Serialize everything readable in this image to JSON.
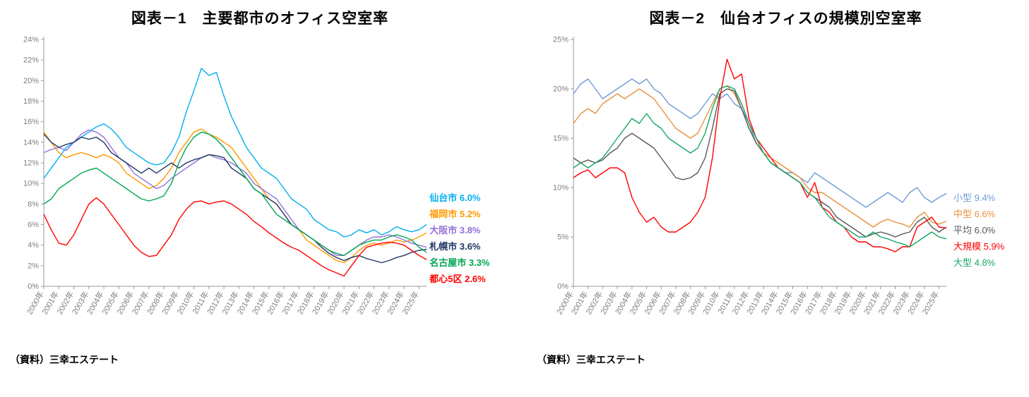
{
  "chart_data": [
    {
      "type": "line",
      "title": "図表－1　主要都市のオフィス空室率",
      "source": "（資料）三幸エステート",
      "x_start": 2000,
      "x_step": 0.5,
      "x_tick_labels": [
        "2000年",
        "2001年",
        "2002年",
        "2003年",
        "2004年",
        "2005年",
        "2006年",
        "2007年",
        "2008年",
        "2009年",
        "2010年",
        "2011年",
        "2012年",
        "2013年",
        "2014年",
        "2015年",
        "2016年",
        "2017年",
        "2018年",
        "2019年",
        "2020年",
        "2021年",
        "2022年",
        "2023年",
        "2024年",
        "2025年"
      ],
      "ylim": [
        0,
        24
      ],
      "y_tick_step": 2,
      "y_tick_labels": [
        "0%",
        "2%",
        "4%",
        "6%",
        "8%",
        "10%",
        "12%",
        "14%",
        "16%",
        "18%",
        "20%",
        "22%",
        "24%"
      ],
      "grid": false,
      "legend_position": "right",
      "series": [
        {
          "name": "仙台市",
          "legend_label": "仙台市 6.0%",
          "color": "#00B0F0",
          "values": [
            10.5,
            11.5,
            12.5,
            13.5,
            14.0,
            14.5,
            15.0,
            15.5,
            15.8,
            15.3,
            14.5,
            13.5,
            13.0,
            12.5,
            12.0,
            11.8,
            12.0,
            13.0,
            14.5,
            17.0,
            19.0,
            21.2,
            20.5,
            20.8,
            18.5,
            16.5,
            15.0,
            13.5,
            12.5,
            11.5,
            11.0,
            10.5,
            9.5,
            8.5,
            8.0,
            7.5,
            6.5,
            6.0,
            5.5,
            5.3,
            4.8,
            5.0,
            5.5,
            5.2,
            5.5,
            5.0,
            5.3,
            5.8,
            5.5,
            5.3,
            5.5,
            6.0
          ]
        },
        {
          "name": "福岡市",
          "legend_label": "福岡市 5.2%",
          "color": "#FF9900",
          "values": [
            15.0,
            14.0,
            13.0,
            12.5,
            12.8,
            13.0,
            12.8,
            12.5,
            12.8,
            12.5,
            12.0,
            11.0,
            10.5,
            10.0,
            9.5,
            9.8,
            10.5,
            11.5,
            13.0,
            14.0,
            15.0,
            15.3,
            14.8,
            14.5,
            14.0,
            13.5,
            12.5,
            11.5,
            10.5,
            9.5,
            8.5,
            8.0,
            7.0,
            6.0,
            5.5,
            4.5,
            4.0,
            3.5,
            3.0,
            2.5,
            2.3,
            2.8,
            3.5,
            4.0,
            4.2,
            4.0,
            4.2,
            4.5,
            4.3,
            4.5,
            4.8,
            5.2
          ]
        },
        {
          "name": "大阪市",
          "legend_label": "大阪市 3.8%",
          "color": "#9370DB",
          "values": [
            13.0,
            13.3,
            13.5,
            13.2,
            14.0,
            14.8,
            15.2,
            15.0,
            14.5,
            13.5,
            12.5,
            12.0,
            11.0,
            10.5,
            10.0,
            9.5,
            9.8,
            10.5,
            11.0,
            11.5,
            12.0,
            12.5,
            12.8,
            12.5,
            12.3,
            12.0,
            11.5,
            11.0,
            10.0,
            9.5,
            9.0,
            8.5,
            7.5,
            6.5,
            5.5,
            5.0,
            4.5,
            4.0,
            3.5,
            3.0,
            3.0,
            3.5,
            4.0,
            4.5,
            4.8,
            4.8,
            5.0,
            4.8,
            4.5,
            4.2,
            4.0,
            3.8
          ]
        },
        {
          "name": "札幌市",
          "legend_label": "札幌市 3.6%",
          "color": "#1F3864",
          "values": [
            14.8,
            14.0,
            13.5,
            13.8,
            14.0,
            14.5,
            14.3,
            14.5,
            14.0,
            13.0,
            12.5,
            12.0,
            11.5,
            11.0,
            11.5,
            11.0,
            11.5,
            12.0,
            11.5,
            12.0,
            12.3,
            12.5,
            12.8,
            12.7,
            12.5,
            11.5,
            11.0,
            10.5,
            9.5,
            9.0,
            8.5,
            8.0,
            7.0,
            6.0,
            5.5,
            5.0,
            4.5,
            3.8,
            3.2,
            2.8,
            2.5,
            2.8,
            3.0,
            2.7,
            2.5,
            2.3,
            2.5,
            2.8,
            3.0,
            3.3,
            3.5,
            3.6
          ]
        },
        {
          "name": "名古屋市",
          "legend_label": "名古屋市 3.3%",
          "color": "#00A651",
          "values": [
            8.0,
            8.5,
            9.5,
            10.0,
            10.5,
            11.0,
            11.3,
            11.5,
            11.0,
            10.5,
            10.0,
            9.5,
            9.0,
            8.5,
            8.3,
            8.5,
            8.8,
            10.0,
            12.0,
            13.5,
            14.5,
            15.0,
            14.8,
            14.3,
            13.5,
            12.5,
            11.5,
            10.5,
            9.5,
            9.0,
            8.0,
            7.0,
            6.5,
            6.0,
            5.5,
            5.0,
            4.5,
            4.0,
            3.5,
            3.2,
            3.0,
            3.5,
            4.0,
            4.3,
            4.5,
            4.5,
            4.8,
            5.0,
            4.8,
            4.5,
            3.8,
            3.3
          ]
        },
        {
          "name": "都心5区",
          "legend_label": "都心5区 2.6%",
          "color": "#FF0000",
          "values": [
            7.0,
            5.5,
            4.2,
            4.0,
            5.0,
            6.5,
            8.0,
            8.6,
            8.0,
            7.0,
            6.0,
            5.0,
            4.0,
            3.3,
            2.9,
            3.0,
            4.0,
            5.0,
            6.5,
            7.5,
            8.2,
            8.3,
            8.0,
            8.2,
            8.3,
            8.0,
            7.5,
            7.0,
            6.3,
            5.8,
            5.2,
            4.7,
            4.2,
            3.8,
            3.5,
            3.0,
            2.5,
            2.0,
            1.6,
            1.3,
            1.0,
            2.0,
            3.0,
            3.8,
            4.0,
            4.2,
            4.3,
            4.2,
            4.0,
            3.5,
            3.0,
            2.6
          ]
        }
      ]
    },
    {
      "type": "line",
      "title": "図表－2　仙台オフィスの規模別空室率",
      "source": "（資料）三幸エステート",
      "x_start": 2000,
      "x_step": 0.5,
      "x_tick_labels": [
        "2000年",
        "2001年",
        "2002年",
        "2003年",
        "2004年",
        "2005年",
        "2006年",
        "2007年",
        "2008年",
        "2009年",
        "2010年",
        "2011年",
        "2012年",
        "2013年",
        "2014年",
        "2015年",
        "2016年",
        "2017年",
        "2018年",
        "2019年",
        "2020年",
        "2021年",
        "2022年",
        "2023年",
        "2024年",
        "2025年"
      ],
      "ylim": [
        0,
        25
      ],
      "y_tick_step": 5,
      "y_tick_labels": [
        "0%",
        "5%",
        "10%",
        "15%",
        "20%",
        "25%"
      ],
      "grid": false,
      "legend_position": "right",
      "series": [
        {
          "name": "小型",
          "legend_label": "小型 9.4%",
          "color": "#6F9BD8",
          "values": [
            19.5,
            20.5,
            21.0,
            20.0,
            19.0,
            19.5,
            20.0,
            20.5,
            21.0,
            20.5,
            21.0,
            20.0,
            19.5,
            18.5,
            18.0,
            17.5,
            17.0,
            17.5,
            18.5,
            19.5,
            19.0,
            19.5,
            18.5,
            18.0,
            16.5,
            14.5,
            13.5,
            12.5,
            12.0,
            11.5,
            11.5,
            11.0,
            10.5,
            11.5,
            11.0,
            10.5,
            10.0,
            9.5,
            9.0,
            8.5,
            8.0,
            8.5,
            9.0,
            9.5,
            9.0,
            8.5,
            9.5,
            10.0,
            9.0,
            8.5,
            9.0,
            9.4
          ]
        },
        {
          "name": "中型",
          "legend_label": "中型 6.6%",
          "color": "#E8923C",
          "values": [
            16.5,
            17.5,
            18.0,
            17.5,
            18.5,
            19.0,
            19.5,
            19.0,
            19.5,
            20.0,
            19.5,
            19.0,
            18.0,
            17.0,
            16.0,
            15.5,
            15.0,
            15.5,
            17.0,
            18.5,
            20.0,
            20.3,
            19.5,
            18.0,
            16.0,
            14.5,
            13.5,
            13.0,
            12.5,
            12.0,
            11.5,
            11.0,
            10.0,
            9.5,
            9.5,
            9.0,
            8.5,
            8.0,
            7.5,
            7.0,
            6.5,
            6.0,
            6.5,
            6.8,
            6.5,
            6.3,
            6.0,
            7.0,
            7.5,
            6.5,
            6.3,
            6.6
          ]
        },
        {
          "name": "平均",
          "legend_label": "平均 6.0%",
          "color": "#595959",
          "values": [
            13.0,
            12.5,
            12.8,
            12.5,
            12.8,
            13.5,
            14.0,
            15.0,
            15.5,
            15.0,
            14.5,
            14.0,
            13.0,
            12.0,
            11.0,
            10.8,
            11.0,
            11.5,
            13.0,
            16.0,
            19.5,
            20.0,
            19.8,
            18.0,
            16.0,
            14.5,
            13.5,
            12.5,
            12.0,
            11.5,
            11.0,
            10.5,
            9.5,
            9.0,
            8.5,
            8.0,
            7.0,
            6.5,
            6.0,
            5.5,
            5.0,
            5.3,
            5.5,
            5.3,
            5.0,
            5.3,
            5.5,
            6.5,
            7.0,
            6.0,
            5.5,
            6.0
          ]
        },
        {
          "name": "大規模",
          "legend_label": "大規模 5.9%",
          "color": "#FF0000",
          "values": [
            11.0,
            11.5,
            11.8,
            11.0,
            11.5,
            12.0,
            12.0,
            11.5,
            9.0,
            7.5,
            6.5,
            7.0,
            6.0,
            5.5,
            5.5,
            6.0,
            6.5,
            7.5,
            9.0,
            13.0,
            19.0,
            23.0,
            21.0,
            21.5,
            17.0,
            15.0,
            14.0,
            13.0,
            12.0,
            11.5,
            11.0,
            10.5,
            9.0,
            10.5,
            8.0,
            7.5,
            6.5,
            6.0,
            5.0,
            4.5,
            4.5,
            4.0,
            4.0,
            3.8,
            3.5,
            4.0,
            4.0,
            6.0,
            6.5,
            7.0,
            6.0,
            5.9
          ]
        },
        {
          "name": "大型",
          "legend_label": "大型 4.8%",
          "color": "#16A765",
          "values": [
            12.0,
            12.5,
            12.0,
            12.5,
            13.0,
            14.0,
            15.0,
            16.0,
            17.0,
            16.5,
            17.5,
            16.5,
            16.0,
            15.0,
            14.5,
            14.0,
            13.5,
            14.0,
            15.5,
            18.0,
            20.0,
            20.3,
            20.0,
            18.5,
            16.5,
            15.0,
            13.5,
            12.5,
            12.0,
            11.5,
            11.0,
            10.5,
            9.5,
            9.0,
            8.0,
            7.0,
            6.5,
            6.0,
            5.5,
            5.0,
            5.0,
            5.5,
            5.0,
            4.8,
            4.5,
            4.3,
            4.0,
            4.5,
            5.0,
            5.5,
            5.0,
            4.8
          ]
        }
      ]
    }
  ]
}
